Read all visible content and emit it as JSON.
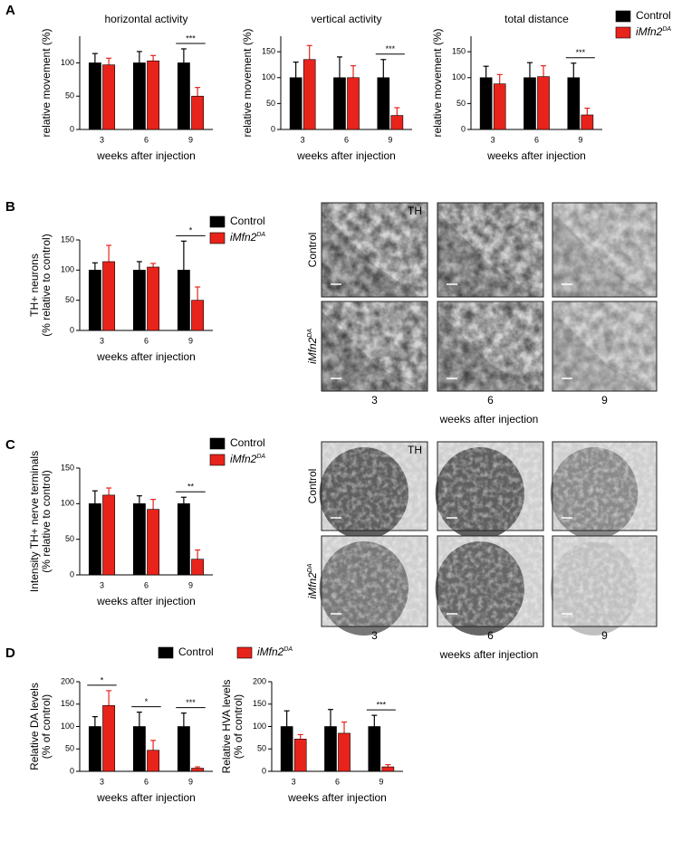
{
  "panel_labels": [
    "A",
    "B",
    "C",
    "D"
  ],
  "chart_data": [
    {
      "type": "bar",
      "title": "horizontal activity",
      "ylabel": [
        "relative movement (%)"
      ],
      "xlabel": "weeks after injection",
      "categories": [
        "3",
        "6",
        "9"
      ],
      "ylim": [
        0,
        140
      ],
      "yticks": [
        0,
        50,
        100
      ],
      "series": [
        {
          "color": "#000000",
          "values": [
            100,
            100,
            100
          ],
          "errors": [
            14,
            17,
            21
          ]
        },
        {
          "color": "#e8231b",
          "values": [
            97,
            103,
            50
          ],
          "errors": [
            10,
            8,
            13
          ]
        }
      ],
      "annotations": [
        null,
        null,
        "***"
      ]
    },
    {
      "type": "bar",
      "title": "vertical activity",
      "ylabel": [
        "relative movement (%)"
      ],
      "xlabel": "weeks after injection",
      "categories": [
        "3",
        "6",
        "9"
      ],
      "ylim": [
        0,
        180
      ],
      "yticks": [
        0,
        50,
        100,
        150
      ],
      "series": [
        {
          "color": "#000000",
          "values": [
            100,
            100,
            100
          ],
          "errors": [
            30,
            40,
            35
          ]
        },
        {
          "color": "#e8231b",
          "values": [
            135,
            100,
            27
          ],
          "errors": [
            27,
            23,
            15
          ]
        }
      ],
      "annotations": [
        null,
        null,
        "***"
      ]
    },
    {
      "type": "bar",
      "title": "total distance",
      "ylabel": [
        "relative movement (%)"
      ],
      "xlabel": "weeks after injection",
      "categories": [
        "3",
        "6",
        "9"
      ],
      "ylim": [
        0,
        180
      ],
      "yticks": [
        0,
        50,
        100,
        150
      ],
      "series": [
        {
          "name": "Control",
          "color": "#000000",
          "values": [
            100,
            100,
            100
          ],
          "errors": [
            22,
            29,
            28
          ]
        },
        {
          "name": "iMfn2",
          "name_sup": "DA",
          "color": "#e8231b",
          "values": [
            88,
            102,
            28
          ],
          "errors": [
            18,
            21,
            13
          ]
        }
      ],
      "legend": "right",
      "annotations": [
        null,
        null,
        "***"
      ]
    },
    {
      "type": "bar",
      "ylabel": [
        "TH+ neurons",
        "(% relative to control)"
      ],
      "xlabel": "weeks after injection",
      "categories": [
        "3",
        "6",
        "9"
      ],
      "ylim": [
        0,
        150
      ],
      "yticks": [
        0,
        50,
        100,
        150
      ],
      "series": [
        {
          "name": "Control",
          "color": "#000000",
          "values": [
            100,
            100,
            100
          ],
          "errors": [
            12,
            14,
            48
          ]
        },
        {
          "name": "iMfn2",
          "name_sup": "DA",
          "color": "#e8231b",
          "values": [
            114,
            105,
            50
          ],
          "errors": [
            27,
            6,
            22
          ]
        }
      ],
      "legend": "right",
      "annotations": [
        null,
        null,
        "*"
      ]
    },
    {
      "type": "bar",
      "ylabel": [
        "Intensity TH+ nerve terminals",
        "(% relative to control)"
      ],
      "xlabel": "weeks after injection",
      "categories": [
        "3",
        "6",
        "9"
      ],
      "ylim": [
        0,
        150
      ],
      "yticks": [
        0,
        50,
        100,
        150
      ],
      "series": [
        {
          "name": "Control",
          "color": "#000000",
          "values": [
            100,
            100,
            100
          ],
          "errors": [
            18,
            11,
            9
          ]
        },
        {
          "name": "iMfn2",
          "name_sup": "DA",
          "color": "#e8231b",
          "values": [
            112,
            92,
            22
          ],
          "errors": [
            10,
            14,
            13
          ]
        }
      ],
      "legend": "right",
      "annotations": [
        null,
        null,
        "**"
      ]
    },
    {
      "type": "bar",
      "ylabel": [
        "Relative DA levels",
        "(% of control)"
      ],
      "xlabel": "weeks after injection",
      "categories": [
        "3",
        "6",
        "9"
      ],
      "ylim": [
        0,
        200
      ],
      "yticks": [
        0,
        50,
        100,
        150,
        200
      ],
      "series": [
        {
          "name": "Control",
          "color": "#000000",
          "values": [
            100,
            100,
            100
          ],
          "errors": [
            22,
            32,
            30
          ]
        },
        {
          "name": "iMfn2",
          "name_sup": "DA",
          "color": "#e8231b",
          "values": [
            147,
            47,
            7
          ],
          "errors": [
            33,
            22,
            3
          ]
        }
      ],
      "legend": "top",
      "annotations": [
        "*",
        "*",
        "***"
      ]
    },
    {
      "type": "bar",
      "ylabel": [
        "Relative HVA levels",
        "(% of control)"
      ],
      "xlabel": "weeks after injection",
      "categories": [
        "3",
        "6",
        "9"
      ],
      "ylim": [
        0,
        200
      ],
      "yticks": [
        0,
        50,
        100,
        150,
        200
      ],
      "series": [
        {
          "color": "#000000",
          "values": [
            100,
            100,
            100
          ],
          "errors": [
            35,
            38,
            25
          ]
        },
        {
          "color": "#e8231b",
          "values": [
            72,
            85,
            10
          ],
          "errors": [
            10,
            25,
            5
          ]
        }
      ],
      "annotations": [
        null,
        null,
        "***"
      ]
    }
  ],
  "image_panels": [
    {
      "stain": "TH",
      "rows": [
        {
          "label": "Control"
        },
        {
          "label": "iMfn2",
          "sup": "DA"
        }
      ],
      "columns": [
        "3",
        "6",
        "9"
      ],
      "xlabel": "weeks after injection"
    },
    {
      "stain": "TH",
      "rows": [
        {
          "label": "Control"
        },
        {
          "label": "iMfn2",
          "sup": "DA"
        }
      ],
      "columns": [
        "3",
        "6",
        "9"
      ],
      "xlabel": "weeks after injection"
    }
  ]
}
